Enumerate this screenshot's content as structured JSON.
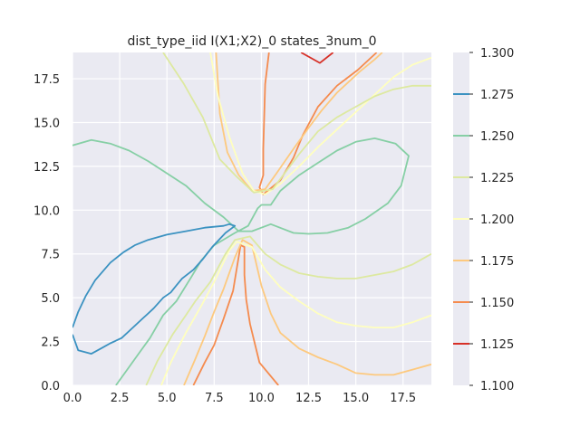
{
  "chart_data": {
    "type": "contour",
    "title": "dist_type_iid I(X1;X2)_0 states_3num_0",
    "xlabel": "",
    "ylabel": "",
    "xlim": [
      0,
      19
    ],
    "ylim": [
      0,
      19
    ],
    "x_ticks": [
      0.0,
      2.5,
      5.0,
      7.5,
      10.0,
      12.5,
      15.0,
      17.5
    ],
    "y_ticks": [
      0.0,
      2.5,
      5.0,
      7.5,
      10.0,
      12.5,
      15.0,
      17.5
    ],
    "x_tick_labels": [
      "0.0",
      "2.5",
      "5.0",
      "7.5",
      "10.0",
      "12.5",
      "15.0",
      "17.5"
    ],
    "y_tick_labels": [
      "0.0",
      "2.5",
      "5.0",
      "7.5",
      "10.0",
      "12.5",
      "15.0",
      "17.5"
    ],
    "grid": true,
    "background": "#eaeaf2",
    "colorbar": {
      "min": 1.1,
      "max": 1.3,
      "ticks": [
        1.1,
        1.125,
        1.15,
        1.175,
        1.2,
        1.225,
        1.25,
        1.275,
        1.3
      ],
      "tick_labels": [
        "1.100",
        "1.125",
        "1.150",
        "1.175",
        "1.200",
        "1.225",
        "1.250",
        "1.275",
        "1.300"
      ]
    },
    "levels": [
      {
        "level": 1.125,
        "color": "#d73027",
        "paths": [
          [
            [
              12.1,
              19
            ],
            [
              13.1,
              18.4
            ],
            [
              13.8,
              19
            ]
          ]
        ]
      },
      {
        "level": 1.15,
        "color": "#f58b4e",
        "paths": [
          [
            [
              6.4,
              0
            ],
            [
              7,
              1.3
            ],
            [
              7.5,
              2.3
            ],
            [
              8,
              3.8
            ],
            [
              8.5,
              5.4
            ],
            [
              8.9,
              8
            ],
            [
              9.1,
              7.9
            ],
            [
              9.1,
              6.3
            ],
            [
              9.2,
              4.9
            ],
            [
              9.4,
              3.5
            ],
            [
              9.9,
              1.3
            ],
            [
              10.9,
              0
            ]
          ],
          [
            [
              10.4,
              19
            ],
            [
              10.2,
              17.2
            ],
            [
              10.1,
              13.5
            ],
            [
              10.1,
              12
            ],
            [
              9.9,
              11.3
            ],
            [
              10.1,
              10.9
            ],
            [
              11,
              11.7
            ],
            [
              11.7,
              13
            ],
            [
              12.2,
              14.3
            ],
            [
              13,
              15.9
            ],
            [
              14,
              17.1
            ],
            [
              15.1,
              18
            ],
            [
              16.1,
              19
            ]
          ]
        ]
      },
      {
        "level": 1.175,
        "color": "#fdc97e",
        "paths": [
          [
            [
              5.9,
              0
            ],
            [
              6.5,
              1.5
            ],
            [
              7,
              2.8
            ],
            [
              7.5,
              4.2
            ],
            [
              8,
              5.5
            ],
            [
              8.6,
              7.3
            ],
            [
              9,
              8.3
            ],
            [
              9.5,
              8
            ],
            [
              10,
              5.7
            ],
            [
              10.5,
              4.1
            ],
            [
              11,
              3
            ],
            [
              12,
              2.1
            ],
            [
              13,
              1.6
            ],
            [
              14,
              1.2
            ],
            [
              15,
              0.7
            ],
            [
              16,
              0.6
            ],
            [
              17,
              0.6
            ],
            [
              18,
              0.9
            ],
            [
              19,
              1.2
            ]
          ],
          [
            [
              7.6,
              19
            ],
            [
              7.8,
              15.5
            ],
            [
              8.2,
              13.3
            ],
            [
              8.8,
              12
            ],
            [
              9.5,
              11.1
            ],
            [
              10.2,
              11.2
            ],
            [
              10.8,
              12.1
            ],
            [
              11.7,
              13.5
            ],
            [
              12.5,
              14.7
            ],
            [
              13.2,
              15.7
            ],
            [
              14,
              16.7
            ],
            [
              15.2,
              17.9
            ],
            [
              16,
              18.6
            ],
            [
              16.4,
              19
            ]
          ]
        ]
      },
      {
        "level": 1.2,
        "color": "#ffffbf",
        "paths": [
          [
            [
              4.7,
              0
            ],
            [
              5.2,
              1.3
            ],
            [
              6,
              3
            ],
            [
              6.8,
              4.5
            ],
            [
              7.5,
              5.9
            ],
            [
              8.3,
              7.7
            ],
            [
              8.7,
              8.2
            ],
            [
              9.5,
              7.9
            ],
            [
              10.2,
              6.6
            ],
            [
              11,
              5.6
            ],
            [
              12,
              4.8
            ],
            [
              13,
              4.1
            ],
            [
              14,
              3.6
            ],
            [
              15,
              3.4
            ],
            [
              16,
              3.3
            ],
            [
              17,
              3.3
            ],
            [
              18,
              3.6
            ],
            [
              19,
              4
            ]
          ],
          [
            [
              7.3,
              19
            ],
            [
              7.7,
              16.5
            ],
            [
              8.3,
              14.2
            ],
            [
              9,
              12.1
            ],
            [
              9.6,
              11.1
            ],
            [
              10.2,
              10.9
            ],
            [
              11,
              11.5
            ],
            [
              12,
              12.5
            ],
            [
              13,
              13.6
            ],
            [
              14,
              14.6
            ],
            [
              15,
              15.6
            ],
            [
              16,
              16.6
            ],
            [
              17,
              17.6
            ],
            [
              18,
              18.3
            ],
            [
              19,
              18.7
            ]
          ]
        ]
      },
      {
        "level": 1.225,
        "color": "#dde9a0",
        "paths": [
          [
            [
              3.9,
              0
            ],
            [
              4.5,
              1.4
            ],
            [
              5.3,
              2.9
            ],
            [
              6,
              4
            ],
            [
              6.5,
              4.8
            ],
            [
              7.3,
              5.9
            ],
            [
              8.1,
              7.5
            ],
            [
              8.6,
              8.3
            ],
            [
              9.4,
              8.5
            ],
            [
              10.2,
              7.5
            ],
            [
              11,
              6.9
            ],
            [
              12,
              6.4
            ],
            [
              13,
              6.2
            ],
            [
              14,
              6.1
            ],
            [
              15,
              6.1
            ],
            [
              16,
              6.3
            ],
            [
              17,
              6.5
            ],
            [
              18,
              6.9
            ],
            [
              19,
              7.5
            ]
          ],
          [
            [
              4.8,
              19
            ],
            [
              5.9,
              17.2
            ],
            [
              6.9,
              15.3
            ],
            [
              7.8,
              12.9
            ],
            [
              8.7,
              11.9
            ],
            [
              9.6,
              11
            ],
            [
              10.6,
              11.2
            ],
            [
              11.3,
              12.2
            ],
            [
              12,
              13.2
            ],
            [
              13,
              14.5
            ],
            [
              14,
              15.3
            ],
            [
              15,
              15.9
            ],
            [
              16,
              16.5
            ],
            [
              17,
              16.9
            ],
            [
              18,
              17.1
            ],
            [
              19,
              17.1
            ]
          ]
        ]
      },
      {
        "level": 1.25,
        "color": "#86cfa5",
        "paths": [
          [
            [
              0,
              13.7
            ],
            [
              1,
              14
            ],
            [
              2,
              13.8
            ],
            [
              3,
              13.4
            ],
            [
              4,
              12.8
            ],
            [
              5,
              12.1
            ],
            [
              6,
              11.4
            ],
            [
              7,
              10.4
            ],
            [
              8,
              9.6
            ],
            [
              8.8,
              8.8
            ],
            [
              9.5,
              8.8
            ],
            [
              10.5,
              9.2
            ],
            [
              11.7,
              8.7
            ],
            [
              12.5,
              8.65
            ],
            [
              13.5,
              8.7
            ],
            [
              14.6,
              9
            ],
            [
              15.5,
              9.5
            ],
            [
              16.7,
              10.4
            ],
            [
              17.4,
              11.4
            ],
            [
              17.8,
              13.1
            ],
            [
              17.1,
              13.8
            ],
            [
              16,
              14.1
            ],
            [
              15,
              13.9
            ],
            [
              14,
              13.4
            ],
            [
              13,
              12.7
            ],
            [
              12,
              12
            ],
            [
              11,
              11.1
            ],
            [
              10.5,
              10.3
            ],
            [
              10,
              10.3
            ],
            [
              9.8,
              10.1
            ],
            [
              9.3,
              9.1
            ],
            [
              8.6,
              8.7
            ],
            [
              7.5,
              8
            ],
            [
              6.8,
              7.1
            ],
            [
              6.3,
              6.2
            ],
            [
              5.5,
              4.8
            ],
            [
              4.8,
              4
            ],
            [
              4.1,
              2.7
            ],
            [
              3.5,
              1.8
            ],
            [
              2.9,
              0.9
            ],
            [
              2.3,
              0
            ]
          ]
        ]
      },
      {
        "level": 1.275,
        "color": "#3b92c1",
        "paths": [
          [
            [
              0,
              3.3
            ],
            [
              0.3,
              4.2
            ],
            [
              0.7,
              5.1
            ],
            [
              1.2,
              6
            ],
            [
              2,
              7
            ],
            [
              2.7,
              7.6
            ],
            [
              3.3,
              8
            ],
            [
              4,
              8.3
            ],
            [
              5,
              8.6
            ],
            [
              6,
              8.8
            ],
            [
              7,
              9
            ],
            [
              8,
              9.1
            ],
            [
              8.3,
              9.2
            ],
            [
              8.6,
              9.1
            ],
            [
              8.1,
              8.7
            ],
            [
              7.4,
              7.9
            ],
            [
              6.9,
              7.2
            ],
            [
              6.4,
              6.6
            ],
            [
              5.8,
              6.1
            ],
            [
              5.5,
              5.7
            ],
            [
              5.2,
              5.3
            ],
            [
              4.8,
              5
            ],
            [
              4.3,
              4.4
            ],
            [
              4,
              4.1
            ],
            [
              3.7,
              3.8
            ],
            [
              3.3,
              3.4
            ],
            [
              3,
              3.1
            ],
            [
              2.6,
              2.7
            ],
            [
              2,
              2.4
            ],
            [
              1.5,
              2.1
            ],
            [
              1,
              1.8
            ],
            [
              0.3,
              2
            ],
            [
              0,
              2.9
            ]
          ]
        ]
      }
    ]
  }
}
